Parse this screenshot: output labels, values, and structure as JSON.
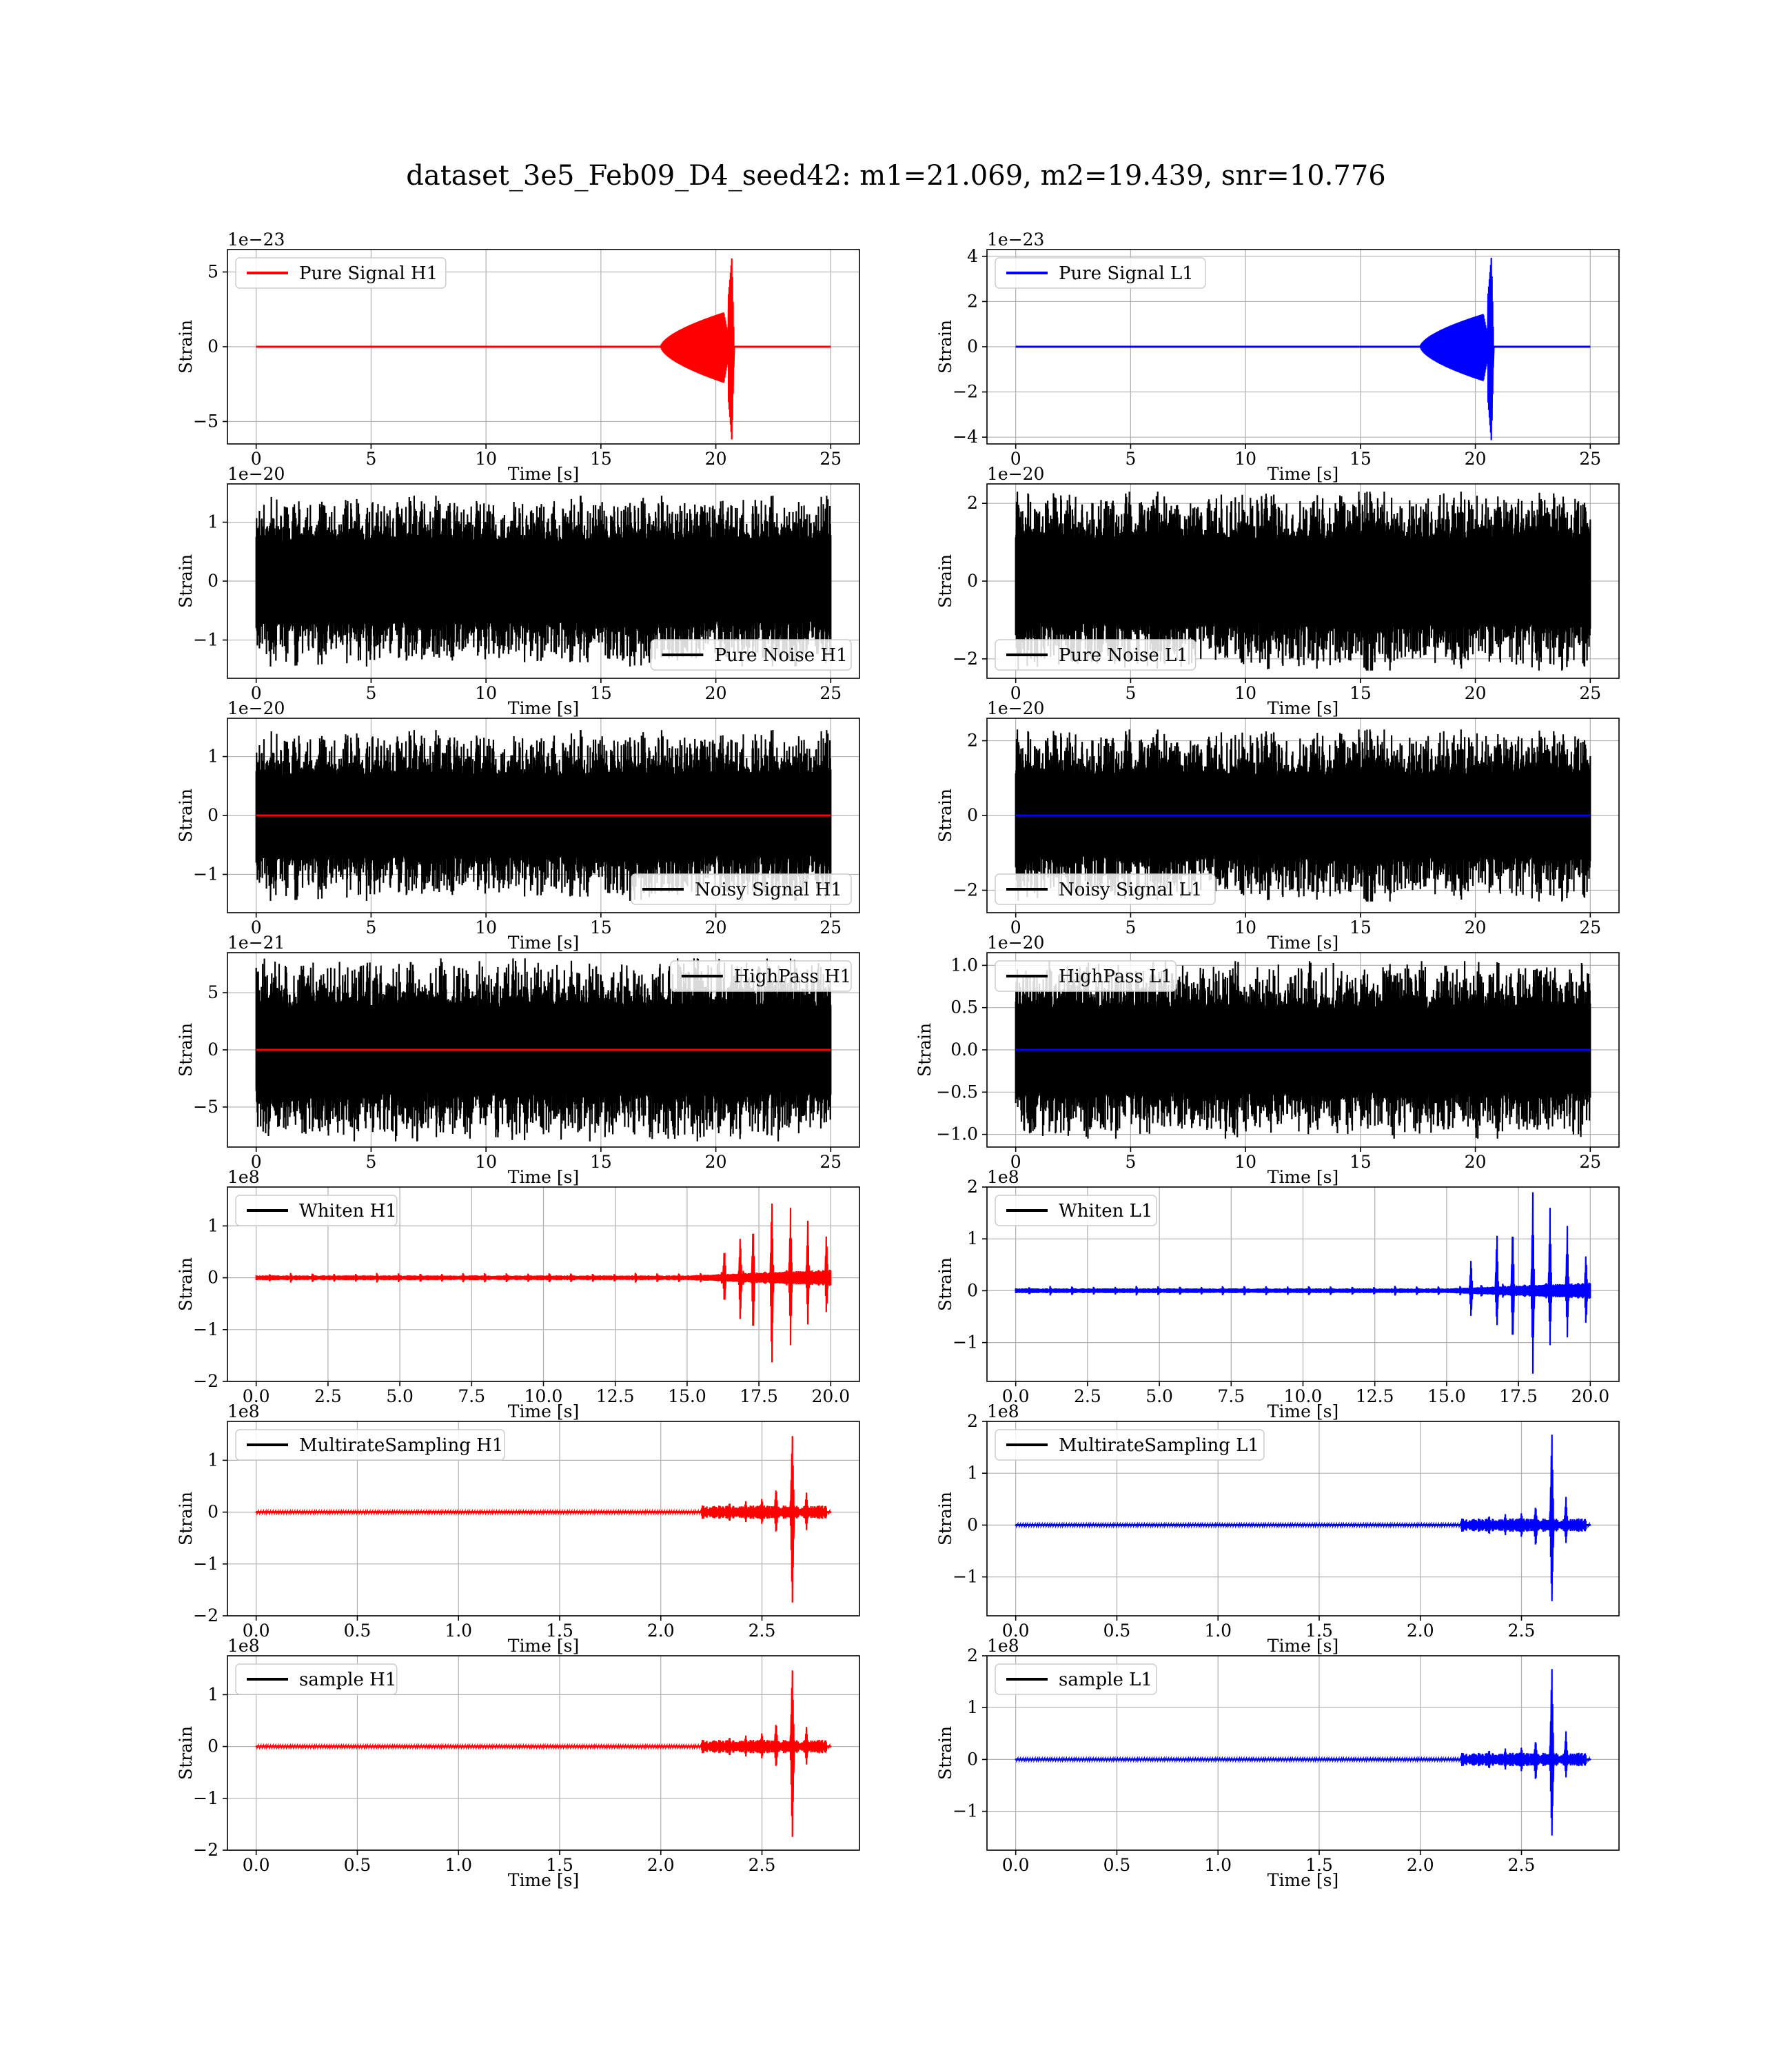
{
  "figure_title": "dataset_3e5_Feb09_D4_seed42: m1=21.069, m2=19.439, snr=10.776",
  "colors": {
    "h1": "#ff0000",
    "l1": "#0000ff",
    "noise": "#000000"
  },
  "chart_data": [
    {
      "id": "pure-signal-h1",
      "type": "line",
      "row": 0,
      "col": 0,
      "legend": "Pure Signal H1",
      "legend_loc": "upper-left",
      "legend_color": "#ff0000",
      "offset_label": "1e−23",
      "xlabel": "Time [s]",
      "ylabel": "Strain",
      "xlim": [
        -1.25,
        26.25
      ],
      "ylim": [
        -6.5,
        6.5
      ],
      "xticks": [
        0,
        5,
        10,
        15,
        20,
        25
      ],
      "xtick_labels": [
        "0",
        "5",
        "10",
        "15",
        "20",
        "25"
      ],
      "yticks": [
        -5,
        0,
        5
      ],
      "ytick_labels": [
        "−5",
        "0",
        "5"
      ],
      "series": [
        {
          "kind": "chirp",
          "color": "#ff0000",
          "x_range": [
            0,
            25
          ],
          "t_start": 17.6,
          "t_end": 20.7,
          "peak": 6.0,
          "pre_amp": 2.3,
          "ringdown": 0.1
        }
      ]
    },
    {
      "id": "pure-signal-l1",
      "type": "line",
      "row": 0,
      "col": 1,
      "legend": "Pure Signal L1",
      "legend_loc": "upper-left",
      "legend_color": "#0000ff",
      "offset_label": "1e−23",
      "xlabel": "Time [s]",
      "ylabel": "Strain",
      "xlim": [
        -1.25,
        26.25
      ],
      "ylim": [
        -4.3,
        4.3
      ],
      "xticks": [
        0,
        5,
        10,
        15,
        20,
        25
      ],
      "xtick_labels": [
        "0",
        "5",
        "10",
        "15",
        "20",
        "25"
      ],
      "yticks": [
        -4,
        -2,
        0,
        2,
        4
      ],
      "ytick_labels": [
        "−4",
        "−2",
        "0",
        "2",
        "4"
      ],
      "series": [
        {
          "kind": "chirp",
          "color": "#0000ff",
          "x_range": [
            0,
            25
          ],
          "t_start": 17.6,
          "t_end": 20.7,
          "peak": 4.0,
          "pre_amp": 1.45,
          "ringdown": 0.1
        }
      ]
    },
    {
      "id": "pure-noise-h1",
      "type": "line",
      "row": 1,
      "col": 0,
      "legend": "Pure Noise H1",
      "legend_loc": "lower-right",
      "legend_color": "#000000",
      "offset_label": "1e−20",
      "xlabel": "Time [s]",
      "ylabel": "Strain",
      "xlim": [
        -1.25,
        26.25
      ],
      "ylim": [
        -1.65,
        1.65
      ],
      "xticks": [
        0,
        5,
        10,
        15,
        20,
        25
      ],
      "xtick_labels": [
        "0",
        "5",
        "10",
        "15",
        "20",
        "25"
      ],
      "yticks": [
        -1,
        0,
        1
      ],
      "ytick_labels": [
        "−1",
        "0",
        "1"
      ],
      "series": [
        {
          "kind": "noise",
          "color": "#000000",
          "x_range": [
            0,
            25
          ],
          "amp": 1.45,
          "seed": 11
        }
      ]
    },
    {
      "id": "pure-noise-l1",
      "type": "line",
      "row": 1,
      "col": 1,
      "legend": "Pure Noise L1",
      "legend_loc": "lower-left",
      "legend_color": "#000000",
      "offset_label": "1e−20",
      "xlabel": "Time [s]",
      "ylabel": "Strain",
      "xlim": [
        -1.25,
        26.25
      ],
      "ylim": [
        -2.5,
        2.5
      ],
      "xticks": [
        0,
        5,
        10,
        15,
        20,
        25
      ],
      "xtick_labels": [
        "0",
        "5",
        "10",
        "15",
        "20",
        "25"
      ],
      "yticks": [
        -2,
        0,
        2
      ],
      "ytick_labels": [
        "−2",
        "0",
        "2"
      ],
      "series": [
        {
          "kind": "noise",
          "color": "#000000",
          "x_range": [
            0,
            25
          ],
          "amp": 2.3,
          "seed": 23
        }
      ]
    },
    {
      "id": "noisy-signal-h1",
      "type": "line",
      "row": 2,
      "col": 0,
      "legend": "Noisy Signal H1",
      "legend_loc": "lower-right",
      "legend_color": "#000000",
      "offset_label": "1e−20",
      "xlabel": "Time [s]",
      "ylabel": "Strain",
      "xlim": [
        -1.25,
        26.25
      ],
      "ylim": [
        -1.65,
        1.65
      ],
      "xticks": [
        0,
        5,
        10,
        15,
        20,
        25
      ],
      "xtick_labels": [
        "0",
        "5",
        "10",
        "15",
        "20",
        "25"
      ],
      "yticks": [
        -1,
        0,
        1
      ],
      "ytick_labels": [
        "−1",
        "0",
        "1"
      ],
      "series": [
        {
          "kind": "noise",
          "color": "#000000",
          "x_range": [
            0,
            25
          ],
          "amp": 1.45,
          "seed": 11
        },
        {
          "kind": "flat",
          "color": "#ff0000",
          "x_range": [
            0,
            25
          ]
        }
      ]
    },
    {
      "id": "noisy-signal-l1",
      "type": "line",
      "row": 2,
      "col": 1,
      "legend": "Noisy Signal L1",
      "legend_loc": "lower-left",
      "legend_color": "#000000",
      "offset_label": "1e−20",
      "xlabel": "Time [s]",
      "ylabel": "Strain",
      "xlim": [
        -1.25,
        26.25
      ],
      "ylim": [
        -2.6,
        2.6
      ],
      "xticks": [
        0,
        5,
        10,
        15,
        20,
        25
      ],
      "xtick_labels": [
        "0",
        "5",
        "10",
        "15",
        "20",
        "25"
      ],
      "yticks": [
        -2,
        0,
        2
      ],
      "ytick_labels": [
        "−2",
        "0",
        "2"
      ],
      "series": [
        {
          "kind": "noise",
          "color": "#000000",
          "x_range": [
            0,
            25
          ],
          "amp": 2.3,
          "seed": 23
        },
        {
          "kind": "flat",
          "color": "#0000ff",
          "x_range": [
            0,
            25
          ]
        }
      ]
    },
    {
      "id": "highpass-h1",
      "type": "line",
      "row": 3,
      "col": 0,
      "legend": "HighPass H1",
      "legend_loc": "upper-right",
      "legend_color": "#000000",
      "offset_label": "1e−21",
      "xlabel": "Time [s]",
      "ylabel": "Strain",
      "xlim": [
        -1.25,
        26.25
      ],
      "ylim": [
        -8.5,
        8.5
      ],
      "xticks": [
        0,
        5,
        10,
        15,
        20,
        25
      ],
      "xtick_labels": [
        "0",
        "5",
        "10",
        "15",
        "20",
        "25"
      ],
      "yticks": [
        -5,
        0,
        5
      ],
      "ytick_labels": [
        "−5",
        "0",
        "5"
      ],
      "series": [
        {
          "kind": "noise",
          "color": "#000000",
          "x_range": [
            0,
            25
          ],
          "amp": 8.0,
          "seed": 37
        },
        {
          "kind": "flat",
          "color": "#ff0000",
          "x_range": [
            0,
            25
          ]
        }
      ]
    },
    {
      "id": "highpass-l1",
      "type": "line",
      "row": 3,
      "col": 1,
      "legend": "HighPass L1",
      "legend_loc": "upper-left",
      "legend_color": "#000000",
      "offset_label": "1e−20",
      "xlabel": "Time [s]",
      "ylabel": "Strain",
      "xlim": [
        -1.25,
        26.25
      ],
      "ylim": [
        -1.15,
        1.15
      ],
      "xticks": [
        0,
        5,
        10,
        15,
        20,
        25
      ],
      "xtick_labels": [
        "0",
        "5",
        "10",
        "15",
        "20",
        "25"
      ],
      "yticks": [
        -1.0,
        -0.5,
        0.0,
        0.5,
        1.0
      ],
      "ytick_labels": [
        "−1.0",
        "−0.5",
        "0.0",
        "0.5",
        "1.0"
      ],
      "series": [
        {
          "kind": "noise",
          "color": "#000000",
          "x_range": [
            0,
            25
          ],
          "amp": 1.05,
          "seed": 41
        },
        {
          "kind": "flat",
          "color": "#0000ff",
          "x_range": [
            0,
            25
          ]
        }
      ]
    },
    {
      "id": "whiten-h1",
      "type": "line",
      "row": 4,
      "col": 0,
      "legend": "Whiten H1",
      "legend_loc": "upper-left",
      "legend_color": "#000000",
      "offset_label": "1e8",
      "xlabel": "Time [s]",
      "ylabel": "Strain",
      "xlim": [
        -1.0,
        21.0
      ],
      "ylim": [
        -2.0,
        1.75
      ],
      "xticks": [
        0,
        2.5,
        5,
        7.5,
        10,
        12.5,
        15,
        17.5,
        20
      ],
      "xtick_labels": [
        "0.0",
        "2.5",
        "5.0",
        "7.5",
        "10.0",
        "12.5",
        "15.0",
        "17.5",
        "20.0"
      ],
      "yticks": [
        -2,
        -1,
        0,
        1
      ],
      "ytick_labels": [
        "−2",
        "−1",
        "0",
        "1"
      ],
      "series": [
        {
          "kind": "whiten",
          "color": "#ff0000",
          "x_range": [
            0,
            20
          ],
          "spikes": [
            [
              16.3,
              0.62,
              -0.55
            ],
            [
              16.85,
              0.85,
              -0.9
            ],
            [
              17.3,
              1.1,
              -1.2
            ],
            [
              17.95,
              1.62,
              -1.85
            ],
            [
              18.6,
              1.35,
              -1.3
            ],
            [
              19.2,
              1.1,
              -0.9
            ],
            [
              19.85,
              0.9,
              -0.75
            ]
          ],
          "ramp_start": 15.0
        }
      ]
    },
    {
      "id": "whiten-l1",
      "type": "line",
      "row": 4,
      "col": 1,
      "legend": "Whiten L1",
      "legend_loc": "upper-left",
      "legend_color": "#000000",
      "offset_label": "1e8",
      "xlabel": "Time [s]",
      "ylabel": "Strain",
      "xlim": [
        -1.0,
        21.0
      ],
      "ylim": [
        -1.75,
        2.0
      ],
      "xticks": [
        0,
        2.5,
        5,
        7.5,
        10,
        12.5,
        15,
        17.5,
        20
      ],
      "xtick_labels": [
        "0.0",
        "2.5",
        "5.0",
        "7.5",
        "10.0",
        "12.5",
        "15.0",
        "17.5",
        "20.0"
      ],
      "yticks": [
        -1,
        0,
        1,
        2
      ],
      "ytick_labels": [
        "−1",
        "0",
        "1",
        "2"
      ],
      "series": [
        {
          "kind": "whiten",
          "color": "#0000ff",
          "x_range": [
            0,
            20
          ],
          "spikes": [
            [
              15.85,
              0.65,
              -0.55
            ],
            [
              16.75,
              1.2,
              -0.75
            ],
            [
              17.3,
              1.35,
              -1.1
            ],
            [
              18.0,
              1.9,
              -1.6
            ],
            [
              18.6,
              1.6,
              -1.05
            ],
            [
              19.2,
              1.25,
              -0.9
            ],
            [
              19.85,
              0.75,
              -0.7
            ]
          ],
          "ramp_start": 15.0
        }
      ]
    },
    {
      "id": "multirate-h1",
      "type": "line",
      "row": 5,
      "col": 0,
      "legend": "MultirateSampling H1",
      "legend_loc": "upper-left",
      "legend_color": "#000000",
      "offset_label": "1e8",
      "xlabel": "Time [s]",
      "ylabel": "Strain",
      "xlim": [
        -0.142,
        2.982
      ],
      "ylim": [
        -2.0,
        1.75
      ],
      "xticks": [
        0,
        0.5,
        1.0,
        1.5,
        2.0,
        2.5
      ],
      "xtick_labels": [
        "0.0",
        "0.5",
        "1.0",
        "1.5",
        "2.0",
        "2.5"
      ],
      "yticks": [
        -2,
        -1,
        0,
        1
      ],
      "ytick_labels": [
        "−2",
        "−1",
        "0",
        "1"
      ],
      "series": [
        {
          "kind": "multirate",
          "color": "#ff0000",
          "x_range": [
            0,
            2.84
          ],
          "burst": [
            2.2,
            2.82
          ],
          "spikes": [
            [
              2.34,
              0.2,
              -0.2
            ],
            [
              2.42,
              0.22,
              -0.2
            ],
            [
              2.5,
              0.28,
              -0.25
            ],
            [
              2.57,
              0.5,
              -0.45
            ],
            [
              2.65,
              1.6,
              -1.9
            ],
            [
              2.72,
              0.38,
              -0.35
            ]
          ]
        }
      ]
    },
    {
      "id": "multirate-l1",
      "type": "line",
      "row": 5,
      "col": 1,
      "legend": "MultirateSampling L1",
      "legend_loc": "upper-left",
      "legend_color": "#000000",
      "offset_label": "1e8",
      "xlabel": "Time [s]",
      "ylabel": "Strain",
      "xlim": [
        -0.142,
        2.982
      ],
      "ylim": [
        -1.75,
        2.0
      ],
      "xticks": [
        0,
        0.5,
        1.0,
        1.5,
        2.0,
        2.5
      ],
      "xtick_labels": [
        "0.0",
        "0.5",
        "1.0",
        "1.5",
        "2.0",
        "2.5"
      ],
      "yticks": [
        -1,
        0,
        1,
        2
      ],
      "ytick_labels": [
        "−1",
        "0",
        "1",
        "2"
      ],
      "series": [
        {
          "kind": "multirate",
          "color": "#0000ff",
          "x_range": [
            0,
            2.84
          ],
          "burst": [
            2.2,
            2.82
          ],
          "spikes": [
            [
              2.34,
              0.2,
              -0.2
            ],
            [
              2.42,
              0.22,
              -0.2
            ],
            [
              2.5,
              0.25,
              -0.25
            ],
            [
              2.57,
              0.4,
              -0.45
            ],
            [
              2.65,
              1.9,
              -1.6
            ],
            [
              2.72,
              0.55,
              -0.35
            ]
          ]
        }
      ]
    },
    {
      "id": "sample-h1",
      "type": "line",
      "row": 6,
      "col": 0,
      "legend": "sample H1",
      "legend_loc": "upper-left",
      "legend_color": "#000000",
      "offset_label": "1e8",
      "xlabel": "Time [s]",
      "ylabel": "Strain",
      "xlim": [
        -0.142,
        2.982
      ],
      "ylim": [
        -2.0,
        1.75
      ],
      "xticks": [
        0,
        0.5,
        1.0,
        1.5,
        2.0,
        2.5
      ],
      "xtick_labels": [
        "0.0",
        "0.5",
        "1.0",
        "1.5",
        "2.0",
        "2.5"
      ],
      "yticks": [
        -2,
        -1,
        0,
        1
      ],
      "ytick_labels": [
        "−2",
        "−1",
        "0",
        "1"
      ],
      "series": [
        {
          "kind": "multirate",
          "color": "#ff0000",
          "x_range": [
            0,
            2.84
          ],
          "burst": [
            2.2,
            2.82
          ],
          "spikes": [
            [
              2.34,
              0.2,
              -0.2
            ],
            [
              2.42,
              0.22,
              -0.2
            ],
            [
              2.5,
              0.28,
              -0.25
            ],
            [
              2.57,
              0.5,
              -0.45
            ],
            [
              2.65,
              1.6,
              -1.9
            ],
            [
              2.72,
              0.38,
              -0.35
            ]
          ]
        }
      ]
    },
    {
      "id": "sample-l1",
      "type": "line",
      "row": 6,
      "col": 1,
      "legend": "sample L1",
      "legend_loc": "upper-left",
      "legend_color": "#000000",
      "offset_label": "1e8",
      "xlabel": "Time [s]",
      "ylabel": "Strain",
      "xlim": [
        -0.142,
        2.982
      ],
      "ylim": [
        -1.75,
        2.0
      ],
      "xticks": [
        0,
        0.5,
        1.0,
        1.5,
        2.0,
        2.5
      ],
      "xtick_labels": [
        "0.0",
        "0.5",
        "1.0",
        "1.5",
        "2.0",
        "2.5"
      ],
      "yticks": [
        -1,
        0,
        1,
        2
      ],
      "ytick_labels": [
        "−1",
        "0",
        "1",
        "2"
      ],
      "series": [
        {
          "kind": "multirate",
          "color": "#0000ff",
          "x_range": [
            0,
            2.84
          ],
          "burst": [
            2.2,
            2.82
          ],
          "spikes": [
            [
              2.34,
              0.2,
              -0.2
            ],
            [
              2.42,
              0.22,
              -0.2
            ],
            [
              2.5,
              0.25,
              -0.25
            ],
            [
              2.57,
              0.4,
              -0.45
            ],
            [
              2.65,
              1.9,
              -1.6
            ],
            [
              2.72,
              0.55,
              -0.35
            ]
          ]
        }
      ]
    }
  ]
}
